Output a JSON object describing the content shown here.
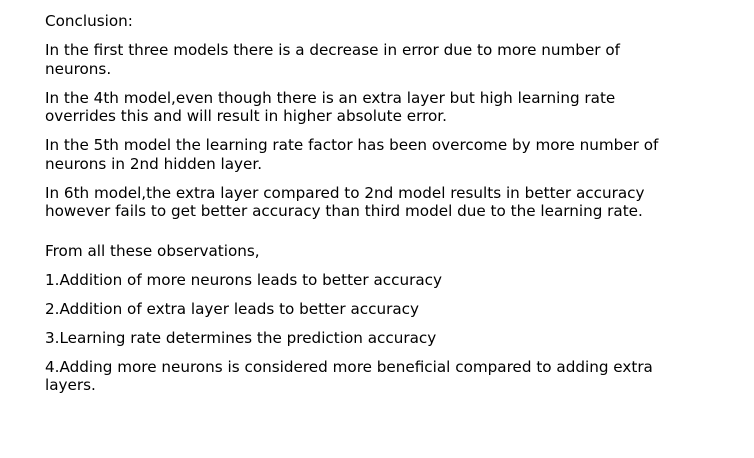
{
  "document": {
    "heading": "Conclusion:",
    "paragraphs": [
      "In the first three models there is a decrease in error due to more number of neurons.",
      "In the 4th model,even though there is an extra layer but high learning rate overrides this and will result in higher absolute error.",
      "In the 5th model the learning rate factor has been overcome by more number of neurons in 2nd hidden layer.",
      "In 6th model,the extra layer compared to 2nd model results in better accuracy however fails to get better accuracy than third model due to the learning rate."
    ],
    "observations_intro": "From all these observations,",
    "observations": [
      "1.Addition of more neurons leads to better accuracy",
      "2.Addition of extra layer leads to better accuracy",
      "3.Learning rate determines the prediction accuracy",
      "4.Adding more neurons is considered more beneficial compared to adding extra layers."
    ]
  }
}
